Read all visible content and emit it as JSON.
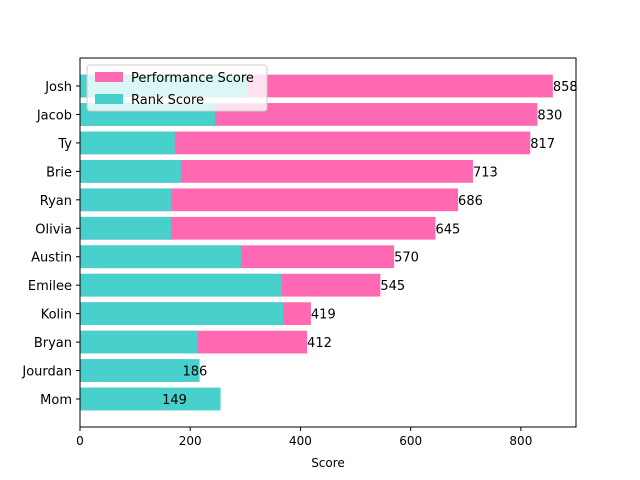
{
  "chart_data": {
    "type": "bar",
    "orientation": "horizontal",
    "title": "",
    "xlabel": "Score",
    "ylabel": "",
    "xlim": [
      0,
      900
    ],
    "xticks": [
      0,
      200,
      400,
      600,
      800
    ],
    "grid": false,
    "legend_position": "upper-left",
    "categories": [
      "Josh",
      "Jacob",
      "Ty",
      "Brie",
      "Ryan",
      "Olivia",
      "Austin",
      "Emilee",
      "Kolin",
      "Bryan",
      "Jourdan",
      "Mom"
    ],
    "series": [
      {
        "name": "Performance Score",
        "color": "#ff69b4",
        "values": [
          858,
          830,
          817,
          713,
          686,
          645,
          570,
          545,
          419,
          412,
          186,
          149
        ]
      },
      {
        "name": "Rank Score",
        "color": "#48d1cc",
        "values": [
          305,
          245,
          172,
          183,
          165,
          165,
          292,
          366,
          369,
          213,
          217,
          255
        ]
      }
    ],
    "data_labels": [
      "858",
      "830",
      "817",
      "713",
      "686",
      "645",
      "570",
      "545",
      "419",
      "412",
      "186",
      "149"
    ]
  }
}
